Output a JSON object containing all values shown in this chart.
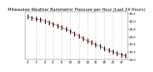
{
  "title": "Milwaukee Weather Barometric Pressure per Hour (Last 24 Hours)",
  "hours": [
    0,
    1,
    2,
    3,
    4,
    5,
    6,
    7,
    8,
    9,
    10,
    11,
    12,
    13,
    14,
    15,
    16,
    17,
    18,
    19,
    20,
    21,
    22,
    23
  ],
  "pressure": [
    30.12,
    30.09,
    30.06,
    30.04,
    30.01,
    29.97,
    29.93,
    29.89,
    29.84,
    29.79,
    29.74,
    29.68,
    29.62,
    29.55,
    29.49,
    29.44,
    29.39,
    29.34,
    29.29,
    29.24,
    29.2,
    29.16,
    29.13,
    29.1
  ],
  "ylim": [
    29.0,
    30.25
  ],
  "line_color": "#ff0000",
  "marker_color": "#000000",
  "bg_color": "#ffffff",
  "grid_color": "#999999",
  "title_fontsize": 3.8,
  "tick_label_fontsize": 2.8,
  "ytick_labels": [
    "29.0",
    "29.2",
    "29.4",
    "29.6",
    "29.8",
    "30.0",
    "30.2"
  ],
  "ytick_values": [
    29.0,
    29.2,
    29.4,
    29.6,
    29.8,
    30.0,
    30.2
  ],
  "xtick_positions": [
    0,
    2,
    4,
    6,
    8,
    10,
    12,
    14,
    16,
    18,
    20,
    22
  ],
  "xtick_labels": [
    "0",
    "2",
    "4",
    "6",
    "8",
    "10",
    "12",
    "14",
    "16",
    "18",
    "20",
    "22"
  ],
  "vgrid_positions": [
    2,
    4,
    6,
    8,
    10,
    12,
    14,
    16,
    18,
    20,
    22
  ]
}
